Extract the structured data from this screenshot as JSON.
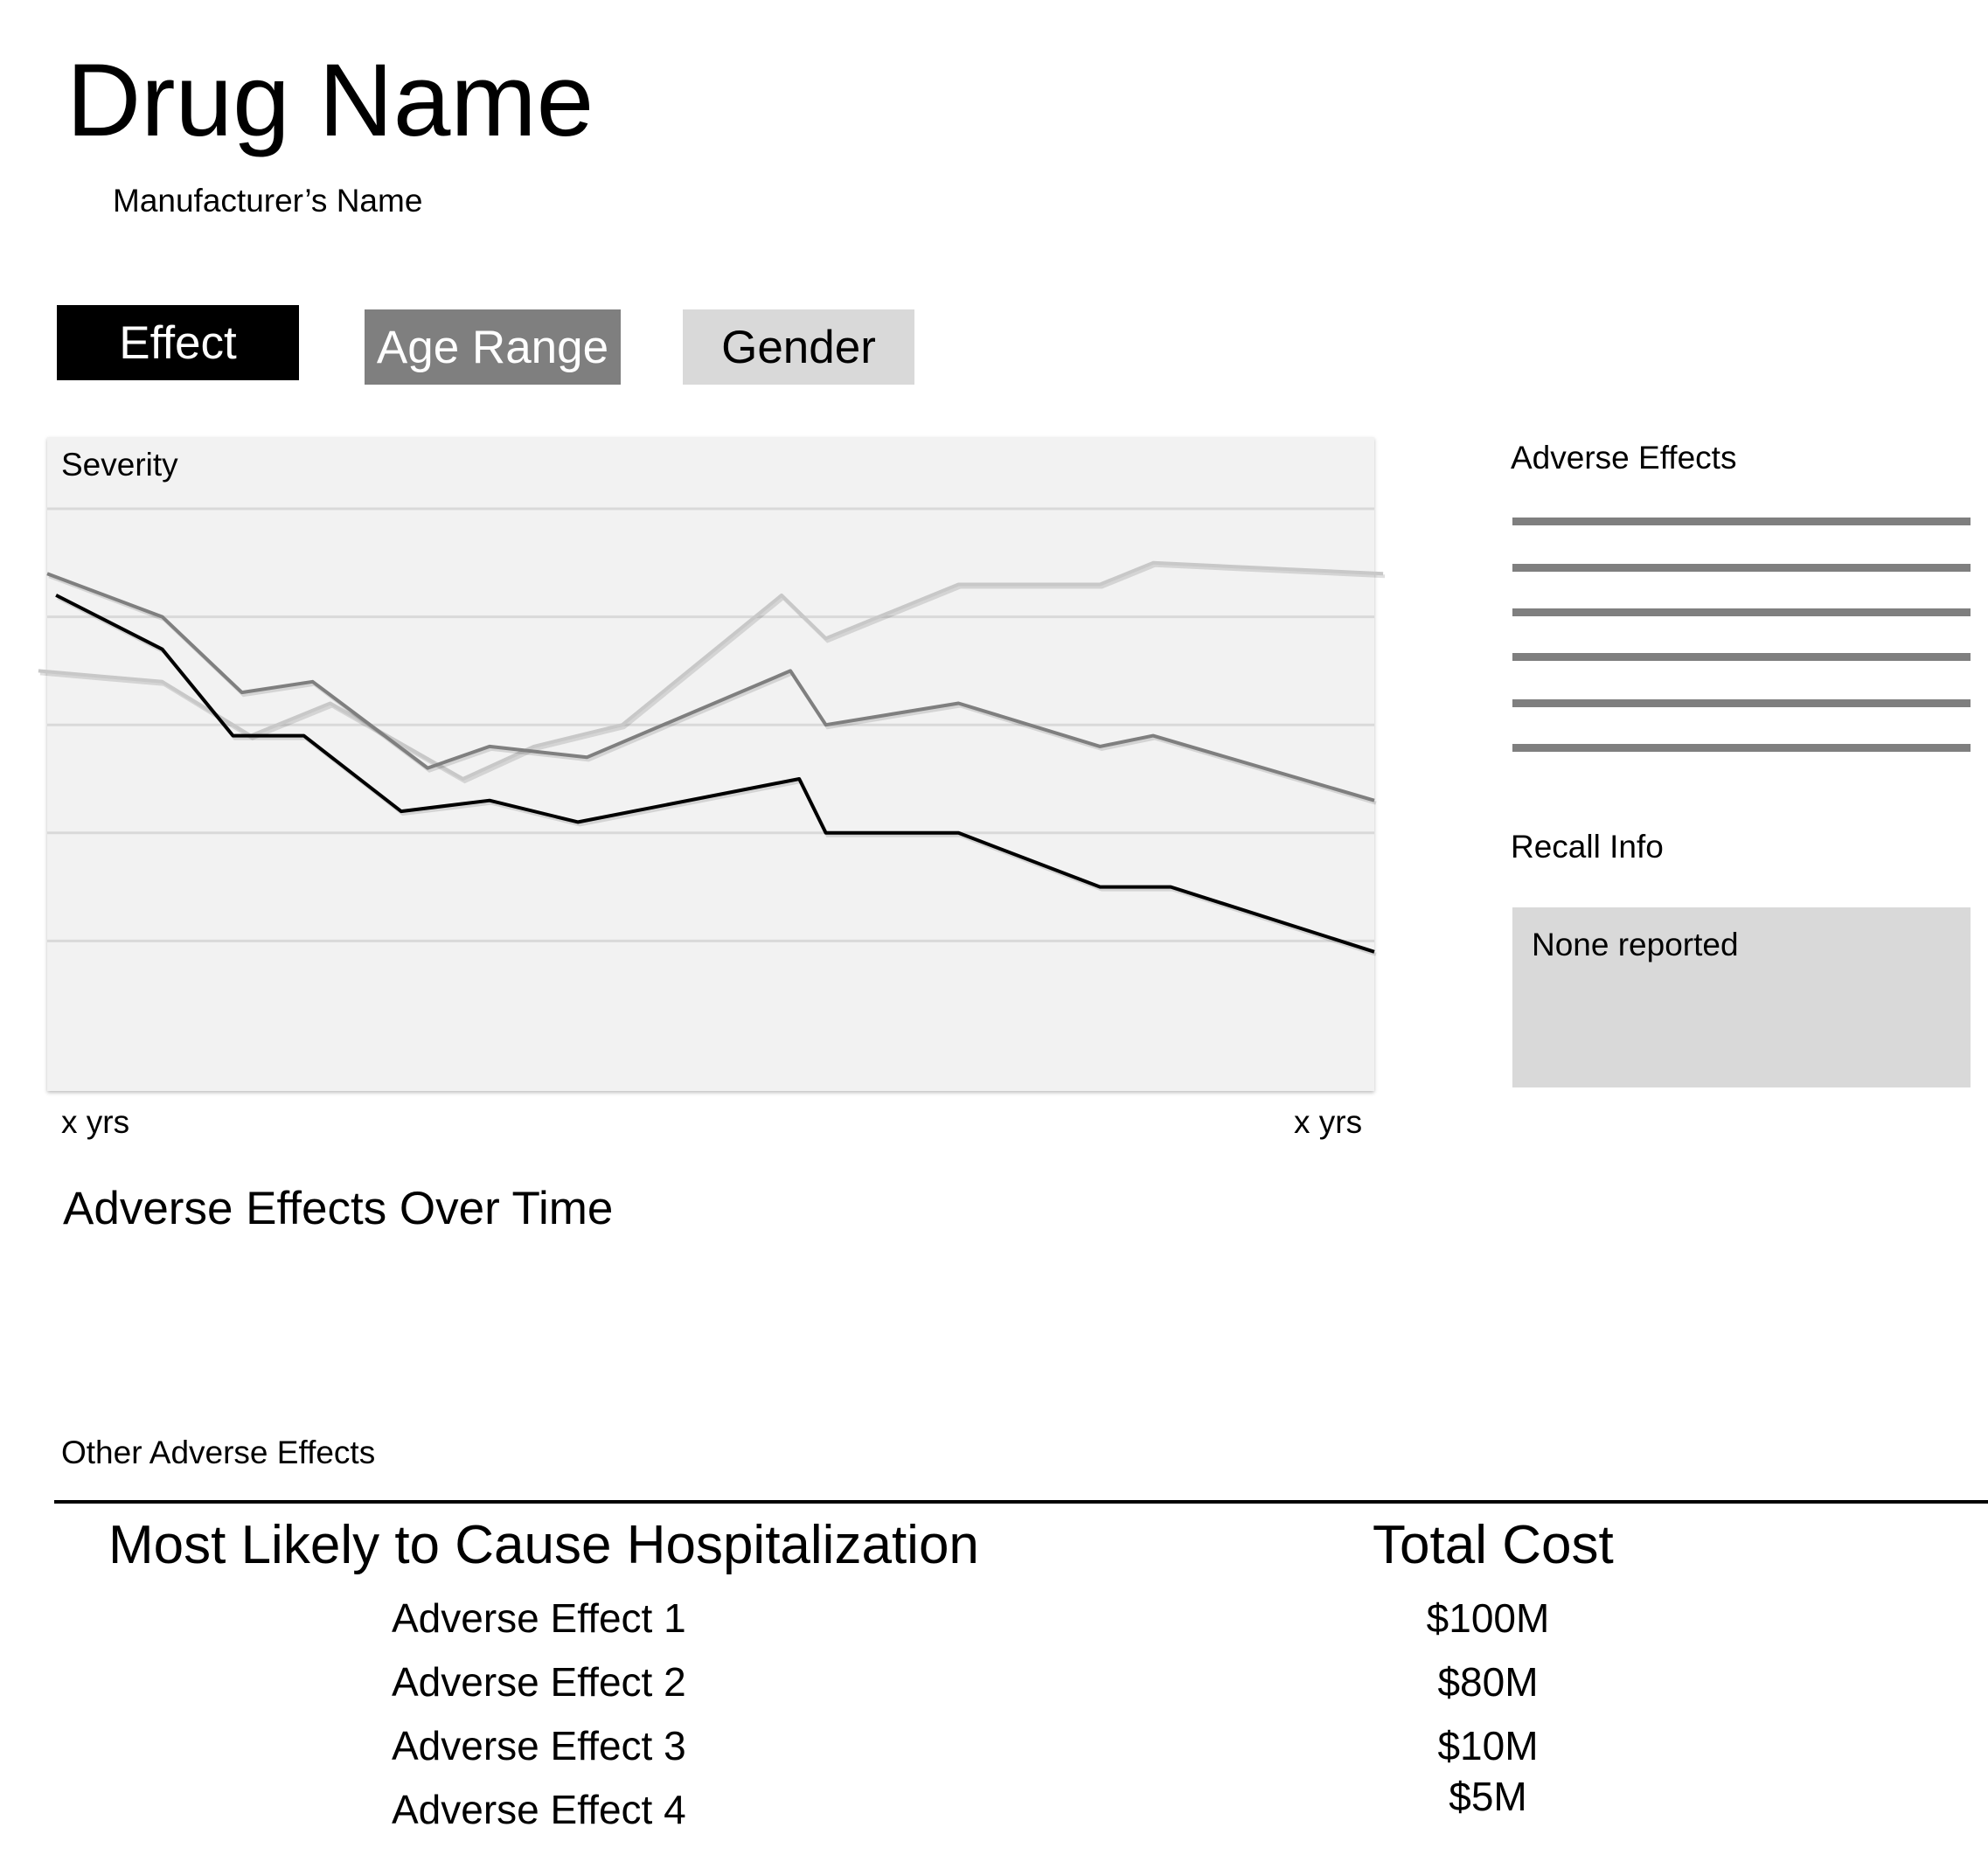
{
  "header": {
    "title": "Drug Name",
    "manufacturer": "Manufacturer’s Name"
  },
  "tabs": [
    {
      "label": "Effect",
      "state": "selected",
      "color": "#000000"
    },
    {
      "label": "Age Range",
      "state": "normal",
      "color": "#7f7f7f"
    },
    {
      "label": "Gender",
      "state": "normal",
      "color": "#d9d9d9"
    }
  ],
  "chart": {
    "caption": "Adverse Effects Over Time"
  },
  "chart_data": {
    "type": "line",
    "ylabel": "Severity",
    "x_start_label": "x yrs",
    "x_end_label": "x yrs",
    "ylim": [
      0,
      5
    ],
    "xlim": [
      0,
      15
    ],
    "yticks": [
      1,
      2,
      3,
      4,
      5
    ],
    "grid": true,
    "legend": "none",
    "y_tick_labels_shown": false,
    "series": [
      {
        "color": "#000000",
        "x": [
          0.1,
          1.3,
          2.1,
          2.9,
          4.0,
          5.0,
          6.0,
          8.5,
          8.8,
          10.3,
          11.9,
          12.7,
          15.0
        ],
        "y": [
          4.2,
          3.7,
          2.9,
          2.9,
          2.2,
          2.3,
          2.1,
          2.5,
          2.0,
          2.0,
          1.5,
          1.5,
          0.9
        ]
      },
      {
        "color": "#7f7f7f",
        "x": [
          0.0,
          1.3,
          2.2,
          3.0,
          4.3,
          5.0,
          6.1,
          8.4,
          8.8,
          10.3,
          11.9,
          12.5,
          15.0
        ],
        "y": [
          4.4,
          4.0,
          3.3,
          3.4,
          2.6,
          2.8,
          2.7,
          3.5,
          3.0,
          3.2,
          2.8,
          2.9,
          2.3
        ]
      },
      {
        "color": "#c8c8c8",
        "x": [
          -0.1,
          1.3,
          2.3,
          3.2,
          4.7,
          5.5,
          6.5,
          8.3,
          8.8,
          10.3,
          11.9,
          12.5,
          15.1
        ],
        "y": [
          3.5,
          3.4,
          2.9,
          3.2,
          2.5,
          2.8,
          3.0,
          4.2,
          3.8,
          4.3,
          4.3,
          4.5,
          4.4
        ]
      }
    ]
  },
  "sidebar": {
    "adverse_effects_heading": "Adverse Effects",
    "recall_heading": "Recall Info",
    "recall_text": "None reported"
  },
  "other": {
    "heading": "Other Adverse Effects"
  },
  "hospitalization": {
    "heading": "Most Likely to Cause Hospitalization",
    "cost_heading": "Total Cost",
    "rows": [
      {
        "effect": "Adverse Effect 1",
        "cost": "$100M"
      },
      {
        "effect": "Adverse Effect 2",
        "cost": "$80M"
      },
      {
        "effect": "Adverse Effect 3",
        "cost": "$10M"
      },
      {
        "effect": "Adverse Effect 4",
        "cost": "$5M"
      }
    ]
  }
}
